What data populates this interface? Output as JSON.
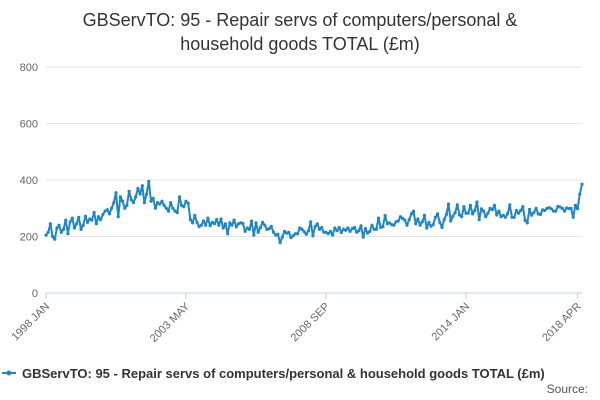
{
  "chart_data": {
    "type": "line",
    "title_lines": [
      "GBServTO: 95 - Repair servs of computers/personal &",
      "household goods TOTAL (£m)"
    ],
    "ylim": [
      0,
      800
    ],
    "yticks": [
      0,
      200,
      400,
      600,
      800
    ],
    "y_tick_labels": [
      "0",
      "200",
      "400",
      "600",
      "800"
    ],
    "x_tick_labels": [
      "1998 JAN",
      "2003 MAY",
      "2008 SEP",
      "2014 JAN",
      "2018 APR"
    ],
    "x_tick_index": [
      0,
      64,
      128,
      192,
      243
    ],
    "grid": "horizontal",
    "legend_position": "bottom",
    "series": [
      {
        "name": "GBServTO: 95 - Repair servs of computers/personal & household goods TOTAL (£m)",
        "color": "#1f85c4",
        "values": [
          205,
          215,
          245,
          200,
          190,
          230,
          240,
          215,
          225,
          258,
          210,
          252,
          265,
          230,
          245,
          268,
          225,
          240,
          272,
          250,
          262,
          258,
          285,
          245,
          270,
          260,
          278,
          290,
          295,
          280,
          300,
          320,
          355,
          270,
          340,
          325,
          300,
          310,
          360,
          330,
          320,
          340,
          370,
          350,
          380,
          320,
          350,
          395,
          325,
          335,
          300,
          320,
          315,
          325,
          310,
          300,
          290,
          320,
          300,
          290,
          285,
          340,
          310,
          305,
          325,
          318,
          260,
          248,
          275,
          250,
          235,
          240,
          255,
          240,
          265,
          238,
          250,
          245,
          260,
          240,
          262,
          230,
          245,
          210,
          248,
          240,
          258,
          234,
          245,
          248,
          246,
          218,
          230,
          225,
          255,
          205,
          248,
          215,
          232,
          250,
          240,
          225,
          228,
          236,
          215,
          205,
          208,
          178,
          198,
          218,
          212,
          215,
          196,
          203,
          210,
          210,
          230,
          225,
          217,
          208,
          220,
          252,
          202,
          235,
          245,
          225,
          232,
          215,
          215,
          210,
          218,
          205,
          230,
          220,
          232,
          214,
          226,
          222,
          230,
          218,
          228,
          232,
          215,
          220,
          238,
          198,
          228,
          212,
          218,
          240,
          225,
          226,
          265,
          232,
          235,
          274,
          245,
          248,
          242,
          240,
          252,
          255,
          270,
          264,
          258,
          240,
          260,
          280,
          290,
          245,
          262,
          240,
          252,
          275,
          230,
          250,
          236,
          242,
          268,
          280,
          250,
          232,
          260,
          278,
          315,
          255,
          272,
          284,
          312,
          276,
          270,
          306,
          282,
          283,
          310,
          280,
          292,
          322,
          260,
          298,
          290,
          270,
          282,
          300,
          295,
          310,
          276,
          290,
          270,
          275,
          268,
          280,
          312,
          268,
          268,
          292,
          282,
          292,
          306,
          257,
          248,
          296,
          275,
          285,
          300,
          280,
          278,
          294,
          292,
          300,
          302,
          298,
          290,
          290,
          307,
          304,
          300,
          290,
          301,
          299,
          300,
          268,
          310,
          298,
          350,
          385
        ]
      }
    ],
    "source_label": "Source:"
  }
}
